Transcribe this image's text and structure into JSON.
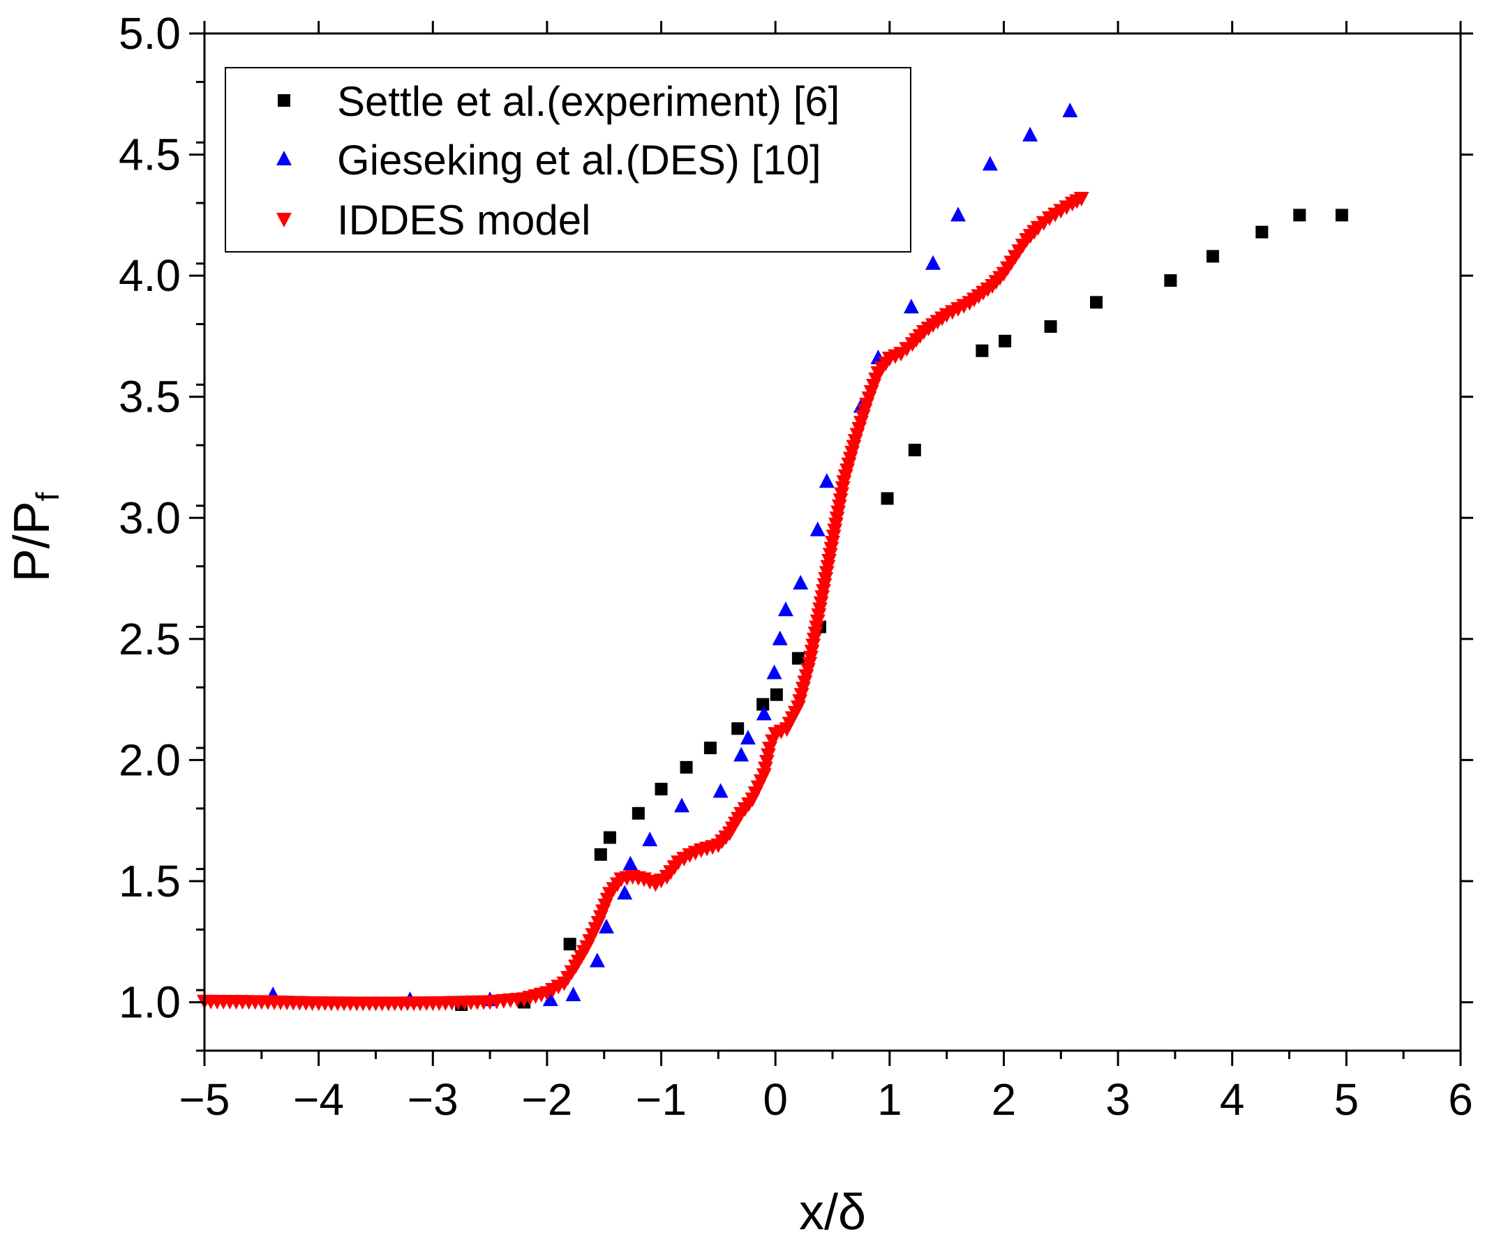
{
  "chart_data": {
    "type": "scatter",
    "xlabel": "x/δ",
    "ylabel": "P/P",
    "ylabel_sub": "f",
    "xlim": [
      -5,
      6
    ],
    "ylim": [
      0.8,
      5.0
    ],
    "xticks": [
      -5,
      -4,
      -3,
      -2,
      -1,
      0,
      1,
      2,
      3,
      4,
      5,
      6
    ],
    "xtick_labels": [
      "−5",
      "−4",
      "−3",
      "−2",
      "−1",
      "0",
      "1",
      "2",
      "3",
      "4",
      "5",
      "6"
    ],
    "yticks": [
      1.0,
      1.5,
      2.0,
      2.5,
      3.0,
      3.5,
      4.0,
      4.5,
      5.0
    ],
    "ytick_labels": [
      "1.0",
      "1.5",
      "2.0",
      "2.5",
      "3.0",
      "3.5",
      "4.0",
      "4.5",
      "5.0"
    ],
    "grid": false,
    "legend_position": "top-left",
    "series": [
      {
        "name": "Settle et al.(experiment) [6]",
        "marker": "square",
        "color": "#000000",
        "points": [
          [
            -2.75,
            0.99
          ],
          [
            -2.2,
            1.0
          ],
          [
            -1.8,
            1.24
          ],
          [
            -1.53,
            1.61
          ],
          [
            -1.45,
            1.68
          ],
          [
            -1.2,
            1.78
          ],
          [
            -1.0,
            1.88
          ],
          [
            -0.78,
            1.97
          ],
          [
            -0.57,
            2.05
          ],
          [
            -0.33,
            2.13
          ],
          [
            -0.11,
            2.23
          ],
          [
            0.01,
            2.27
          ],
          [
            0.2,
            2.42
          ],
          [
            0.39,
            2.55
          ],
          [
            0.98,
            3.08
          ],
          [
            1.22,
            3.28
          ],
          [
            1.81,
            3.69
          ],
          [
            2.01,
            3.73
          ],
          [
            2.41,
            3.79
          ],
          [
            2.81,
            3.89
          ],
          [
            3.46,
            3.98
          ],
          [
            3.83,
            4.08
          ],
          [
            4.26,
            4.18
          ],
          [
            4.59,
            4.25
          ],
          [
            4.96,
            4.25
          ]
        ]
      },
      {
        "name": "Gieseking et al.(DES) [10]",
        "marker": "triangle-up",
        "color": "#0000ff",
        "points": [
          [
            -4.4,
            1.03
          ],
          [
            -3.2,
            1.01
          ],
          [
            -2.5,
            1.01
          ],
          [
            -1.97,
            1.01
          ],
          [
            -1.77,
            1.03
          ],
          [
            -1.56,
            1.17
          ],
          [
            -1.48,
            1.31
          ],
          [
            -1.32,
            1.45
          ],
          [
            -1.27,
            1.57
          ],
          [
            -1.1,
            1.67
          ],
          [
            -0.82,
            1.81
          ],
          [
            -0.48,
            1.87
          ],
          [
            -0.3,
            2.02
          ],
          [
            -0.24,
            2.09
          ],
          [
            -0.1,
            2.19
          ],
          [
            -0.01,
            2.36
          ],
          [
            0.04,
            2.5
          ],
          [
            0.09,
            2.62
          ],
          [
            0.22,
            2.73
          ],
          [
            0.37,
            2.95
          ],
          [
            0.45,
            3.15
          ],
          [
            0.75,
            3.46
          ],
          [
            0.9,
            3.66
          ],
          [
            1.19,
            3.87
          ],
          [
            1.38,
            4.05
          ],
          [
            1.6,
            4.25
          ],
          [
            1.88,
            4.46
          ],
          [
            2.23,
            4.58
          ],
          [
            2.58,
            4.68
          ]
        ]
      },
      {
        "name": "IDDES model",
        "marker": "triangle-down",
        "color": "#ff0000",
        "curve": [
          [
            -5.0,
            1.005
          ],
          [
            -4.5,
            1.003
          ],
          [
            -4.0,
            0.998
          ],
          [
            -3.5,
            0.997
          ],
          [
            -3.0,
            0.998
          ],
          [
            -2.5,
            1.003
          ],
          [
            -2.2,
            1.015
          ],
          [
            -2.0,
            1.04
          ],
          [
            -1.85,
            1.08
          ],
          [
            -1.75,
            1.15
          ],
          [
            -1.65,
            1.23
          ],
          [
            -1.55,
            1.33
          ],
          [
            -1.45,
            1.45
          ],
          [
            -1.35,
            1.51
          ],
          [
            -1.25,
            1.52
          ],
          [
            -1.15,
            1.51
          ],
          [
            -1.05,
            1.49
          ],
          [
            -0.95,
            1.52
          ],
          [
            -0.85,
            1.58
          ],
          [
            -0.75,
            1.61
          ],
          [
            -0.65,
            1.63
          ],
          [
            -0.5,
            1.65
          ],
          [
            -0.4,
            1.7
          ],
          [
            -0.3,
            1.78
          ],
          [
            -0.2,
            1.84
          ],
          [
            -0.1,
            1.94
          ],
          [
            -0.05,
            2.05
          ],
          [
            0.0,
            2.11
          ],
          [
            0.1,
            2.13
          ],
          [
            0.2,
            2.22
          ],
          [
            0.3,
            2.4
          ],
          [
            0.4,
            2.65
          ],
          [
            0.5,
            2.9
          ],
          [
            0.6,
            3.15
          ],
          [
            0.7,
            3.32
          ],
          [
            0.8,
            3.47
          ],
          [
            0.9,
            3.6
          ],
          [
            1.0,
            3.66
          ],
          [
            1.1,
            3.68
          ],
          [
            1.2,
            3.72
          ],
          [
            1.3,
            3.77
          ],
          [
            1.5,
            3.84
          ],
          [
            1.7,
            3.89
          ],
          [
            1.9,
            3.96
          ],
          [
            2.0,
            4.01
          ],
          [
            2.1,
            4.08
          ],
          [
            2.2,
            4.15
          ],
          [
            2.3,
            4.2
          ],
          [
            2.4,
            4.24
          ],
          [
            2.5,
            4.27
          ],
          [
            2.6,
            4.3
          ],
          [
            2.68,
            4.32
          ]
        ]
      }
    ]
  }
}
